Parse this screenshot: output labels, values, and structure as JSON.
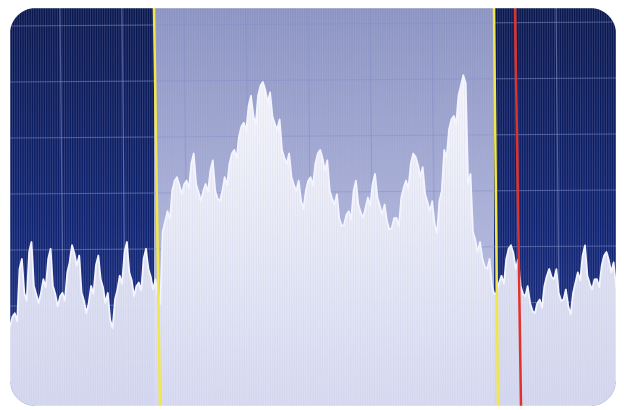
{
  "photo": {
    "subject": "spectrum-analyzer-display",
    "colors": {
      "screen_background": "#0b1d63",
      "selection_band": "#8c95c8",
      "grid_line": "#7f8cc9",
      "trace": "#f3f4ff",
      "yellow_marker": "#f1e64a",
      "red_marker": "#e0322b"
    },
    "trace_levels": [
      0.18,
      0.22,
      0.35,
      0.28,
      0.4,
      0.3,
      0.25,
      0.32,
      0.38,
      0.3,
      0.24,
      0.28,
      0.34,
      0.42,
      0.36,
      0.28,
      0.22,
      0.3,
      0.36,
      0.32,
      0.25,
      0.2,
      0.26,
      0.33,
      0.4,
      0.34,
      0.27,
      0.31,
      0.38,
      0.35,
      0.29,
      0.27,
      0.46,
      0.52,
      0.58,
      0.62,
      0.57,
      0.61,
      0.66,
      0.6,
      0.55,
      0.6,
      0.64,
      0.58,
      0.55,
      0.62,
      0.66,
      0.7,
      0.74,
      0.78,
      0.83,
      0.8,
      0.86,
      0.9,
      0.84,
      0.8,
      0.76,
      0.7,
      0.66,
      0.62,
      0.58,
      0.55,
      0.58,
      0.62,
      0.66,
      0.7,
      0.64,
      0.58,
      0.54,
      0.5,
      0.48,
      0.52,
      0.58,
      0.54,
      0.5,
      0.56,
      0.6,
      0.56,
      0.51,
      0.49,
      0.47,
      0.5,
      0.56,
      0.61,
      0.66,
      0.68,
      0.62,
      0.57,
      0.52,
      0.48,
      0.55,
      0.7,
      0.76,
      0.8,
      0.86,
      0.92,
      0.6,
      0.46,
      0.4,
      0.38,
      0.35,
      0.3,
      0.28,
      0.33,
      0.38,
      0.42,
      0.35,
      0.3,
      0.27,
      0.25,
      0.22,
      0.26,
      0.3,
      0.35,
      0.32,
      0.28,
      0.26,
      0.24,
      0.28,
      0.34,
      0.39,
      0.33,
      0.29,
      0.32,
      0.36,
      0.4,
      0.34,
      0.3
    ]
  }
}
